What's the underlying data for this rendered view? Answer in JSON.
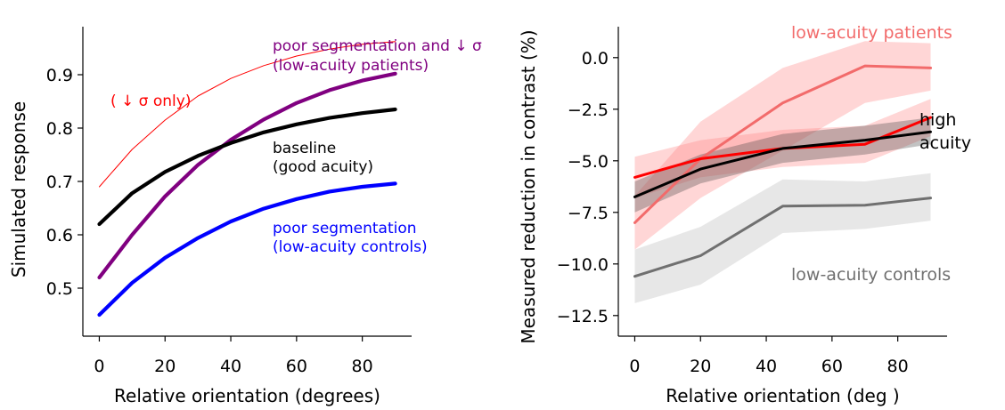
{
  "chart_data": [
    {
      "type": "line",
      "xlabel": "Relative orientation (degrees)",
      "ylabel": "Simulated response",
      "xlim": [
        -5,
        95
      ],
      "ylim": [
        0.41,
        0.99
      ],
      "xticks": [
        0,
        20,
        40,
        60,
        80
      ],
      "yticks": [
        0.5,
        0.6,
        0.7,
        0.8,
        0.9
      ],
      "grid": false,
      "series": [
        {
          "key": "sigma_only",
          "color": "#ff0000",
          "style": "thin",
          "x": [
            0,
            10,
            20,
            30,
            40,
            50,
            60,
            70,
            80,
            90
          ],
          "y": [
            0.69,
            0.76,
            0.815,
            0.86,
            0.893,
            0.917,
            0.935,
            0.948,
            0.957,
            0.962
          ]
        },
        {
          "key": "poor_seg_and_sigma",
          "color": "#800080",
          "style": "thick",
          "x": [
            0,
            10,
            20,
            30,
            40,
            50,
            60,
            70,
            80,
            90
          ],
          "y": [
            0.52,
            0.6,
            0.672,
            0.731,
            0.778,
            0.816,
            0.847,
            0.871,
            0.889,
            0.902
          ]
        },
        {
          "key": "baseline",
          "color": "#000000",
          "style": "thick",
          "x": [
            0,
            10,
            20,
            30,
            40,
            50,
            60,
            70,
            80,
            90
          ],
          "y": [
            0.62,
            0.678,
            0.718,
            0.748,
            0.772,
            0.792,
            0.807,
            0.819,
            0.828,
            0.835
          ]
        },
        {
          "key": "poor_seg",
          "color": "#0000ff",
          "style": "thick",
          "x": [
            0,
            10,
            20,
            30,
            40,
            50,
            60,
            70,
            80,
            90
          ],
          "y": [
            0.45,
            0.51,
            0.557,
            0.594,
            0.625,
            0.649,
            0.667,
            0.681,
            0.69,
            0.696
          ]
        }
      ],
      "annotations": [
        {
          "key": "sigma_only",
          "color": "#ff0000",
          "lines": [
            "( ↓ σ only)"
          ]
        },
        {
          "key": "poor_seg_and_sigma",
          "color": "#800080",
          "lines": [
            "poor segmentation and  ↓ σ",
            "(low-acuity patients)"
          ]
        },
        {
          "key": "baseline",
          "color": "#000000",
          "lines": [
            "baseline",
            "(good acuity)"
          ]
        },
        {
          "key": "poor_seg",
          "color": "#0000ff",
          "lines": [
            "poor segmentation",
            "(low-acuity controls)"
          ]
        }
      ]
    },
    {
      "type": "line",
      "xlabel": "Relative orientation (deg )",
      "ylabel": "Measured reduction in contrast (%)",
      "xlim": [
        -5,
        95
      ],
      "ylim": [
        -13.5,
        1.5
      ],
      "xticks": [
        0,
        20,
        40,
        60,
        80
      ],
      "yticks": [
        -12.5,
        -10.0,
        -7.5,
        -5.0,
        -2.5,
        0.0
      ],
      "grid": false,
      "series": [
        {
          "key": "low_acuity_patients",
          "color": "#f26b6b",
          "band_color": "#ff8080",
          "x": [
            0,
            20,
            45,
            70,
            90
          ],
          "y": [
            -8.0,
            -4.9,
            -2.2,
            -0.4,
            -0.5
          ],
          "lower": [
            -9.3,
            -6.8,
            -4.5,
            -2.2,
            -1.6
          ],
          "upper": [
            -6.7,
            -3.1,
            -0.5,
            0.8,
            0.7
          ]
        },
        {
          "key": "red_line",
          "color": "#ff0000",
          "band_color": "#ff8080",
          "x": [
            0,
            20,
            45,
            70,
            90
          ],
          "y": [
            -5.8,
            -4.9,
            -4.4,
            -4.2,
            -2.9
          ],
          "lower": [
            -6.8,
            -5.8,
            -5.3,
            -5.1,
            -3.8
          ],
          "upper": [
            -4.8,
            -4.0,
            -3.5,
            -3.3,
            -2.0
          ]
        },
        {
          "key": "low_acuity_controls",
          "color": "#707070",
          "band_color": "#b4b4b4",
          "x": [
            0,
            20,
            45,
            70,
            90
          ],
          "y": [
            -10.6,
            -9.6,
            -7.2,
            -7.15,
            -6.8
          ],
          "lower": [
            -11.9,
            -11.0,
            -8.5,
            -8.3,
            -7.9
          ],
          "upper": [
            -9.3,
            -8.2,
            -5.9,
            -6.0,
            -5.6
          ]
        },
        {
          "key": "high_acuity",
          "color": "#000000",
          "band_color": "#404040",
          "x": [
            0,
            20,
            45,
            70,
            90
          ],
          "y": [
            -6.75,
            -5.4,
            -4.4,
            -4.0,
            -3.6
          ],
          "lower": [
            -7.5,
            -6.1,
            -5.1,
            -4.7,
            -4.2
          ],
          "upper": [
            -6.0,
            -4.7,
            -3.7,
            -3.3,
            -2.9
          ]
        }
      ],
      "annotations": [
        {
          "key": "low_acuity_patients",
          "color": "#f26b6b",
          "lines": [
            "low-acuity patients"
          ]
        },
        {
          "key": "high_acuity",
          "color": "#000000",
          "lines": [
            "high",
            "acuity"
          ]
        },
        {
          "key": "low_acuity_controls",
          "color": "#707070",
          "lines": [
            "low-acuity controls"
          ]
        }
      ]
    }
  ]
}
